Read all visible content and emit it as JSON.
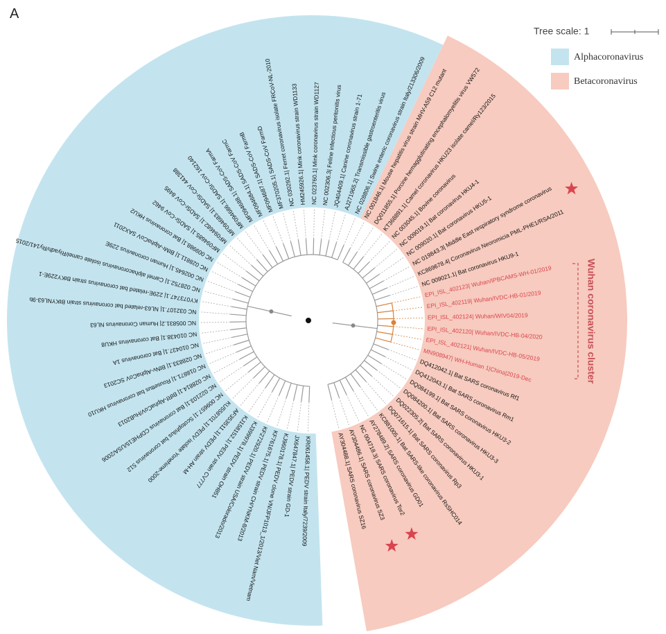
{
  "panel_label": "A",
  "tree_scale": "Tree scale: 1",
  "legend": [
    "Alphacoronavirus",
    "Betacoronavirus"
  ],
  "cluster_label": "Wuhan coronavirus cluster",
  "alpha_leaves": [
    "KR061458.1| PEDV strain Italy/7239/2009",
    "JX647847.1| PEDV strain GD-1",
    "KJ960178.1| PEDV clone VN/JFP1013_1/2013/Viet Nam/Vietnam",
    "KF761675.1| PEDV strain CH/YNKM-8/2013",
    "KF272920.1| PEDV strain USA/Colorado/2013",
    "KJ399978.1| PEDV strain OH851",
    "KJ158152.1| PEDV strain CV777",
    "AF353511.1| PEDV strain AH-M",
    "KU558701.1| PEDV isolate Yonehime-2000",
    "NC 009657.1| Scotophilus bat coronavirus 512",
    "NC 022103.1| Bat coronavirus CDPHE15/USA/2006",
    "NC 028814.1| BtRf-AlphaCoV/HuB2013",
    "NC 018871.1| Rousettus bat coronavirus HKU10",
    "NC 028833.1| BtNv-AlphaCoV SC2013",
    "NC 010437.1| Bat coronavirus 1A",
    "NC 010438.1| Bat coronavirus HKU8",
    "NC 005831.2| Human Coronavirus NL63",
    "NC 032107.1| NL63-related bat coronavirus strain BtKYNL63-9b",
    "KY073747.1| 229E-related bat coronavirus strain BtKY229E-1",
    "NC 028752.1| Camel alphacoronavirus isolate camel/Riyadh/Ry141/2015",
    "NC 002645.1| Human coronavirus 229E",
    "NC 028811.1| BtMr-AlphaCoV SAX2011",
    "NC 009988.1| Bat coronavirus HKU2",
    "MF094685.1| SADSr-CoV 9462",
    "MF094682.1| SADSr-CoV 8495",
    "MF094683.1| SADSr-CoV 441388",
    "MF094686.1| SADSr-CoV 162140",
    "MF094688.1| SADS-CoV FarmA",
    "MF094684.1| SADS-CoV FarmC",
    "MF094687.1| SADS-CoV FarmB",
    "MF370205.1| SADS-CoV FarmD",
    "NC 030292.1| Ferret coronavirus isolate FRCoV-NL-2010",
    "HM245926.1| Mink coronavirus strain WD1133",
    "NC 023760.1| Mink coronavirus strain WD1127",
    "NC 002306.3| Feline infectious peritonitis virus",
    "JQ404409.1| Canine coronavirus strain 1-71",
    "AJ271965.2| Transmissible gastroenteritis virus",
    "NC 028806.1| Swine enteric coronavirus strain Italy/213306/2009"
  ],
  "beta_leaves_before": [
    "NC 001846.1| Mouse hepatitis virus strain MHV-A59 C12 mutant",
    "DQ011855.1| Porcine hemagglutinating encephalomyelitis virus VW572",
    "KT368891.1| Camel coronavirus HKU23 isolate camel/Ry123/2015",
    "NC 003045.1| Bovine coronavirus",
    "NC 009019.1| Bat coronavirus HKU4-1",
    "NC 009020.1| Bat coronavirus HKU5-1",
    "NC 019843.3| Middle East respiratory syndrome coronavirus",
    "KC869678.4| Coronavirus Neoromicia PML-PHE1/RSA/2011",
    "NC 009021.1| Bat coronavirus HKU9-1"
  ],
  "wuhan_leaves": [
    "EPI_ISL_402123| Wuhan/IPBCAMS-WH-01/2019",
    "EPI_ISL_402119| Wuhan/IVDC-HB-01/2019",
    "EPI_ISL_402124| Wuhan/WIV04/2019",
    "EPI_ISL_402120| Wuhan/IVDC-HB-04/2020",
    "EPI_ISL_402121| Wuhan/IVDC-HB-05/2019",
    "MN908947| WH-Human 1|China|2019-Dec"
  ],
  "beta_leaves_after": [
    "DQ412042.1| Bat SARS coronavirus Rf1",
    "DQ412043.1| Bat SARS coronavirus Rm1",
    "DQ084199.1| Bat SARS coronavirus HKU3-2",
    "DQ084200.1| Bat SARS coronavirus HKU3-3",
    "DQ022305.2| Bat SARS coronavirus HKU3-1",
    "DQ071615.1| Bat SARS coronavirus Rp3",
    "KC881005.1| Bat SARS-like coronavirus RsSHC014",
    "AY278489.2| SARS coronavirus GD01",
    "NC 004718.3| SARS coronavirus Tor2",
    "AY304486.1| SARS coronavirus SZ3",
    "AY304488.1| SARS coronavirus SZ16"
  ]
}
